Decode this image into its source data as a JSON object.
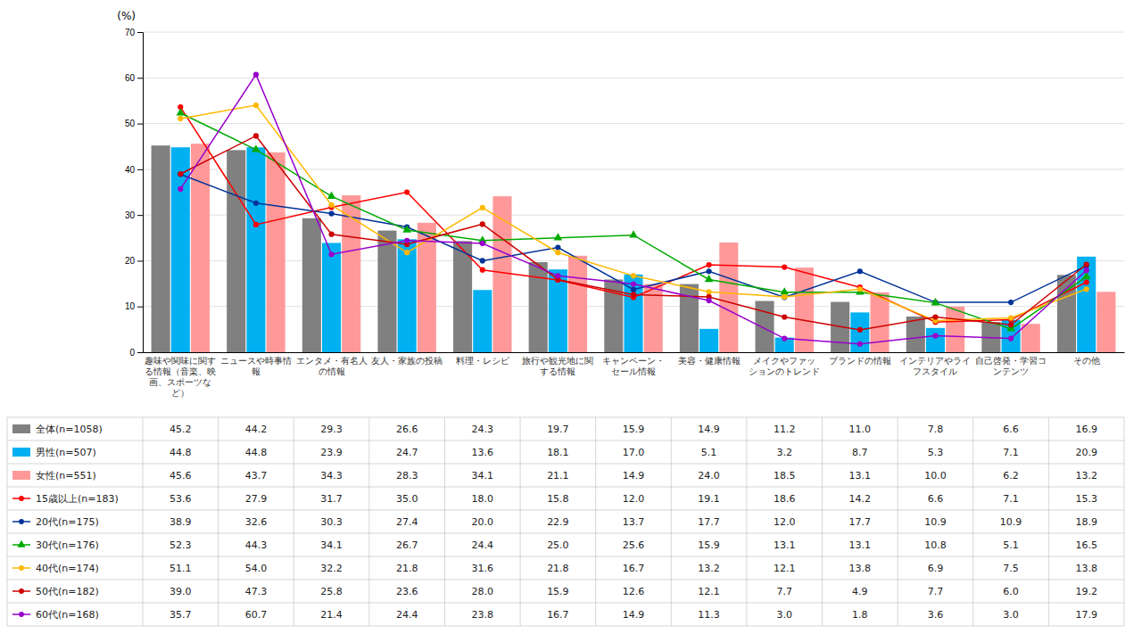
{
  "chart_data": {
    "type": "bar",
    "y_label": "(%)",
    "categories": [
      "趣味や関味に関す\nる情報（音楽、映\n画、スポーツな\nど）",
      "ニュースや時事情\n報",
      "エンタメ・有名人\nの情報",
      "友人・家族の投稿",
      "料理・レシピ",
      "旅行や観光地に関\nする情報",
      "キャンペーン・\nセール情報",
      "美容・健康情報",
      "メイクやファッ\nションのトレンド",
      "ブランドの情報",
      "インテリアやライ\nフスタイル",
      "自己啓発・学習コ\nンテンツ",
      "その他"
    ],
    "series": [
      {
        "name": "全体(n=1058)",
        "type": "bar",
        "color": "#808080",
        "values": [
          45.2,
          44.2,
          29.3,
          26.6,
          24.3,
          19.7,
          15.9,
          14.9,
          11.2,
          11.0,
          7.8,
          6.6,
          16.9
        ],
        "value_labels": [
          "45.2",
          "44.2",
          "29.3",
          "26.6",
          "24.3",
          "19.7",
          "15.9",
          "14.9",
          "11.2",
          "11.0",
          "7.8",
          "6.6",
          "16.9"
        ]
      },
      {
        "name": "男性(n=507)",
        "type": "bar",
        "color": "#00B0F0",
        "values": [
          44.8,
          44.8,
          23.9,
          24.7,
          13.6,
          18.1,
          17.0,
          5.1,
          3.2,
          8.7,
          5.3,
          7.1,
          20.9
        ],
        "value_labels": [
          "44.8",
          "44.8",
          "23.9",
          "24.7",
          "13.6",
          "18.1",
          "17.0",
          "5.1",
          "3.2",
          "8.7",
          "5.3",
          "7.1",
          "20.9"
        ]
      },
      {
        "name": "女性(n=551)",
        "type": "bar",
        "color": "#FF9999",
        "values": [
          45.6,
          43.7,
          34.3,
          28.3,
          34.1,
          21.1,
          14.9,
          24.0,
          18.5,
          13.1,
          10.0,
          6.2,
          13.2
        ],
        "value_labels": [
          "45.6",
          "43.7",
          "34.3",
          "28.3",
          "34.1",
          "21.1",
          "14.9",
          "24.0",
          "18.5",
          "13.1",
          "10.0",
          "6.2",
          "13.2"
        ]
      },
      {
        "name": "15歳以上(n=183)",
        "type": "line",
        "color": "#FF0000",
        "marker": "circle",
        "values": [
          53.6,
          27.9,
          31.7,
          35.0,
          18.0,
          15.8,
          12.0,
          19.1,
          18.6,
          14.2,
          6.6,
          7.1,
          15.3
        ],
        "value_labels": [
          "53.6",
          "27.9",
          "31.7",
          "35.0",
          "18.0",
          "15.8",
          "12.0",
          "19.1",
          "18.6",
          "14.2",
          "6.6",
          "7.1",
          "15.3"
        ]
      },
      {
        "name": "20代(n=175)",
        "type": "line",
        "color": "#003399",
        "marker": "circle",
        "values": [
          38.9,
          32.6,
          30.3,
          27.4,
          20.0,
          22.9,
          13.7,
          17.7,
          12.0,
          17.7,
          10.9,
          10.9,
          18.9
        ],
        "value_labels": [
          "38.9",
          "32.6",
          "30.3",
          "27.4",
          "20.0",
          "22.9",
          "13.7",
          "17.7",
          "12.0",
          "17.7",
          "10.9",
          "10.9",
          "18.9"
        ]
      },
      {
        "name": "30代(n=176)",
        "type": "line",
        "color": "#00AA00",
        "marker": "triangle",
        "values": [
          52.3,
          44.3,
          34.1,
          26.7,
          24.4,
          25.0,
          25.6,
          15.9,
          13.1,
          13.1,
          10.8,
          5.1,
          16.5
        ],
        "value_labels": [
          "52.3",
          "44.3",
          "34.1",
          "26.7",
          "24.4",
          "25.0",
          "25.6",
          "15.9",
          "13.1",
          "13.1",
          "10.8",
          "5.1",
          "16.5"
        ]
      },
      {
        "name": "40代(n=174)",
        "type": "line",
        "color": "#FFB800",
        "marker": "circle",
        "values": [
          51.1,
          54.0,
          32.2,
          21.8,
          31.6,
          21.8,
          16.7,
          13.2,
          12.1,
          13.8,
          6.9,
          7.5,
          13.8
        ],
        "value_labels": [
          "51.1",
          "54.0",
          "32.2",
          "21.8",
          "31.6",
          "21.8",
          "16.7",
          "13.2",
          "12.1",
          "13.8",
          "6.9",
          "7.5",
          "13.8"
        ]
      },
      {
        "name": "50代(n=182)",
        "type": "line",
        "color": "#CC0000",
        "marker": "circle",
        "values": [
          39.0,
          47.3,
          25.8,
          23.6,
          28.0,
          15.9,
          12.6,
          12.1,
          7.7,
          4.9,
          7.7,
          6.0,
          19.2
        ],
        "value_labels": [
          "39.0",
          "47.3",
          "25.8",
          "23.6",
          "28.0",
          "15.9",
          "12.6",
          "12.1",
          "7.7",
          "4.9",
          "7.7",
          "6.0",
          "19.2"
        ]
      },
      {
        "name": "60代(n=168)",
        "type": "line",
        "color": "#9900CC",
        "marker": "circle",
        "values": [
          35.7,
          60.7,
          21.4,
          24.4,
          23.8,
          16.7,
          14.9,
          11.3,
          3.0,
          1.8,
          3.6,
          3.0,
          17.9
        ],
        "value_labels": [
          "35.7",
          "60.7",
          "21.4",
          "24.4",
          "23.8",
          "16.7",
          "14.9",
          "11.3",
          "3.0",
          "1.8",
          "3.6",
          "3.0",
          "17.9"
        ]
      }
    ],
    "ylim": [
      0,
      70
    ],
    "yticks": [
      0,
      10,
      20,
      30,
      40,
      50,
      60,
      70
    ],
    "grid": true,
    "legend": "bottom"
  }
}
